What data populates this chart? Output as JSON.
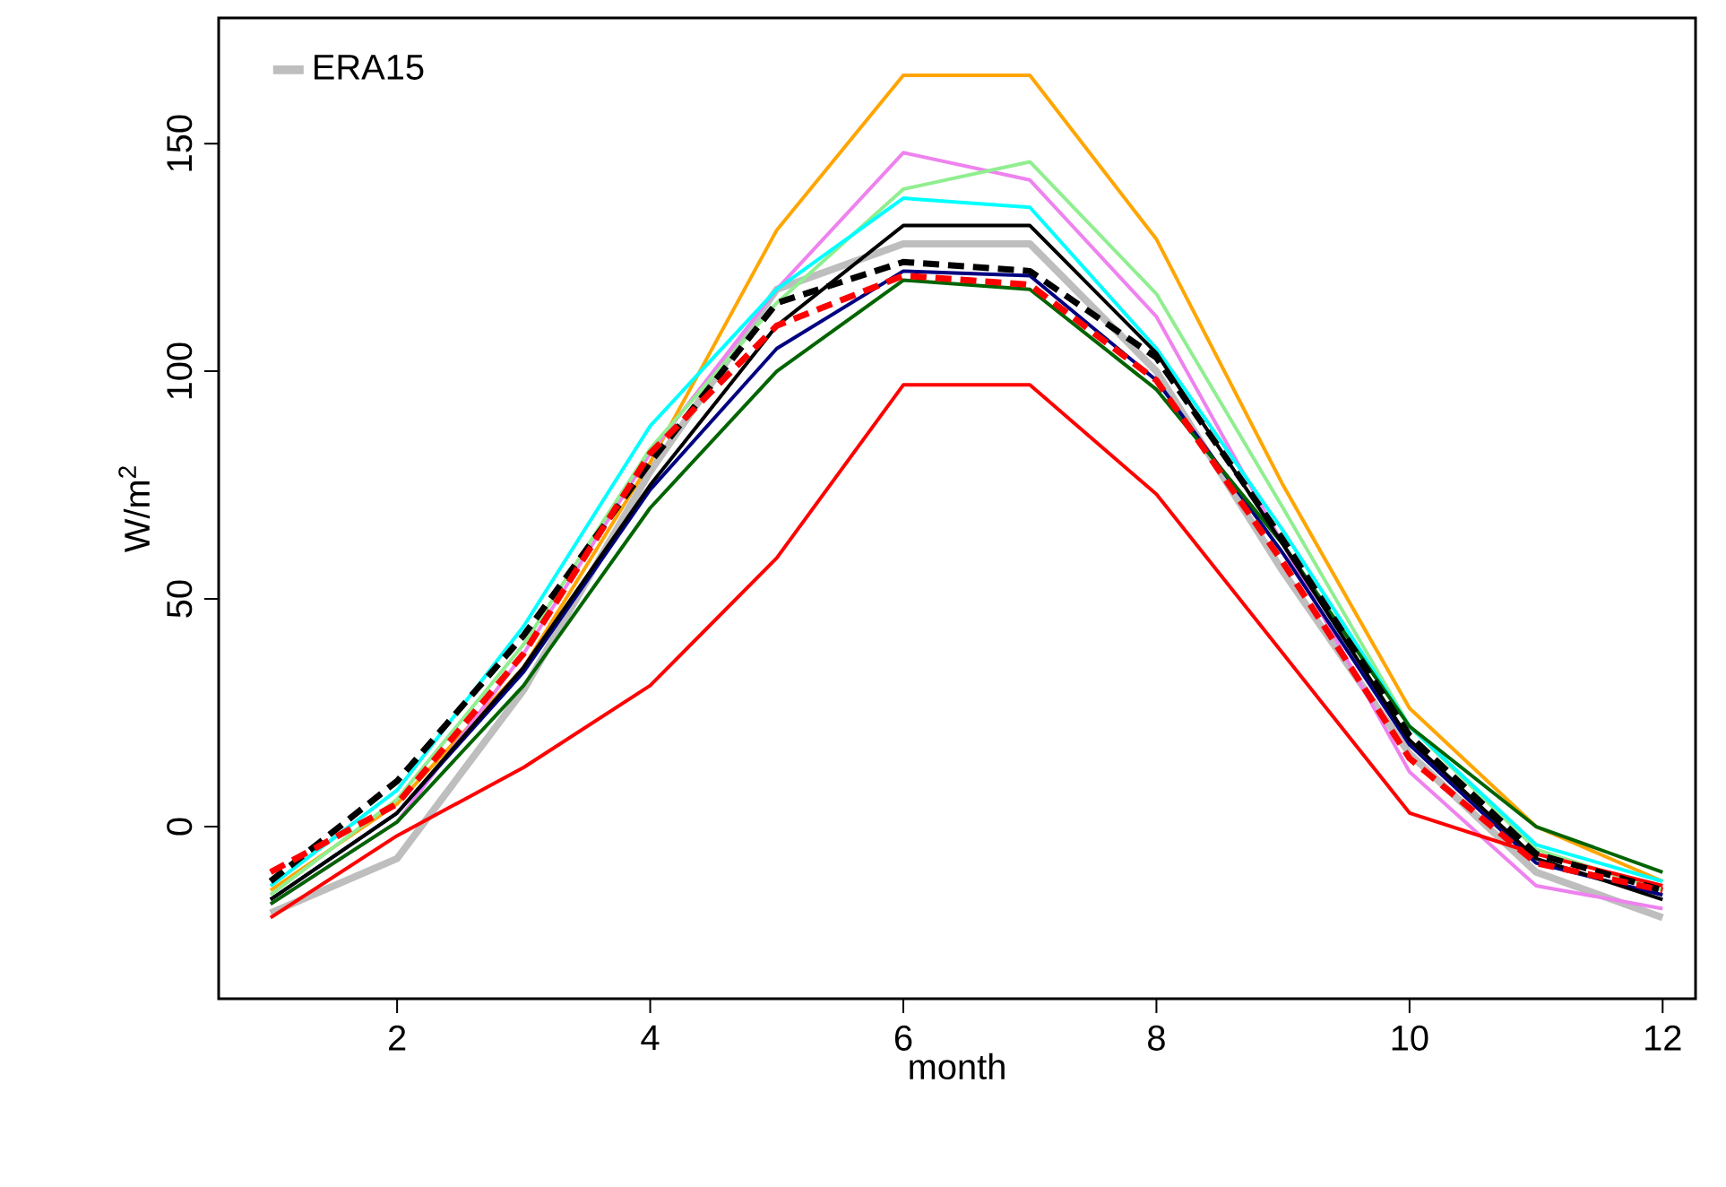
{
  "chart_data": {
    "type": "line",
    "xlabel": "month",
    "ylabel": "W/m$^{2}$",
    "x": [
      1,
      2,
      3,
      4,
      5,
      6,
      7,
      8,
      9,
      10,
      11,
      12
    ],
    "xlim": [
      0.59,
      12.26
    ],
    "ylim": [
      -37.8,
      177.6
    ],
    "xticks": [
      2,
      4,
      6,
      8,
      10,
      12
    ],
    "yticks": [
      0,
      50,
      100,
      150
    ],
    "grid": false,
    "legend": "top left",
    "marker": "none",
    "series": [
      {
        "name": "ERA15",
        "color": "#bebebe",
        "line_style": "solid",
        "values": [
          -19,
          -7,
          30,
          78,
          118,
          128,
          128,
          100,
          56,
          16,
          -10,
          -20
        ]
      },
      {
        "color": "#ffa500",
        "line_style": "solid",
        "values": [
          -14,
          5,
          35,
          80,
          131,
          165,
          165,
          129,
          75,
          26,
          0,
          -12
        ]
      },
      {
        "color": "#ee82ee",
        "line_style": "solid",
        "values": [
          -17,
          1,
          38,
          82,
          118,
          148,
          142,
          112,
          62,
          12,
          -13,
          -18
        ]
      },
      {
        "color": "#90ee90",
        "line_style": "solid",
        "values": [
          -15,
          6,
          40,
          83,
          115,
          140,
          146,
          117,
          70,
          22,
          -5,
          -14
        ]
      },
      {
        "color": "#00ffff",
        "line_style": "solid",
        "values": [
          -13,
          8,
          44,
          88,
          118,
          138,
          136,
          105,
          65,
          22,
          -4,
          -12
        ]
      },
      {
        "color": "#000080",
        "line_style": "solid",
        "values": [
          -16,
          3,
          34,
          74,
          105,
          122,
          121,
          98,
          60,
          18,
          -8,
          -15
        ]
      },
      {
        "color": "#006400",
        "line_style": "solid",
        "values": [
          -17,
          1,
          31,
          70,
          100,
          120,
          118,
          96,
          62,
          22,
          0,
          -10
        ]
      },
      {
        "color": "#ff0000",
        "line_style": "solid",
        "values": [
          -20,
          -2,
          13,
          31,
          59,
          97,
          97,
          73,
          38,
          3,
          -6,
          -13
        ]
      },
      {
        "color": "#000000",
        "line_style": "solid",
        "values": [
          -16,
          3,
          35,
          75,
          110,
          132,
          132,
          104,
          62,
          19,
          -7,
          -16
        ]
      },
      {
        "color": "#000000",
        "line_style": "dashed",
        "values": [
          -12,
          10,
          42,
          80,
          115,
          124,
          122,
          103,
          63,
          20,
          -6,
          -14
        ]
      },
      {
        "color": "#ff0000",
        "line_style": "dashed",
        "values": [
          -10,
          5,
          38,
          82,
          110,
          121,
          119,
          98,
          58,
          15,
          -8,
          -14
        ]
      }
    ]
  }
}
